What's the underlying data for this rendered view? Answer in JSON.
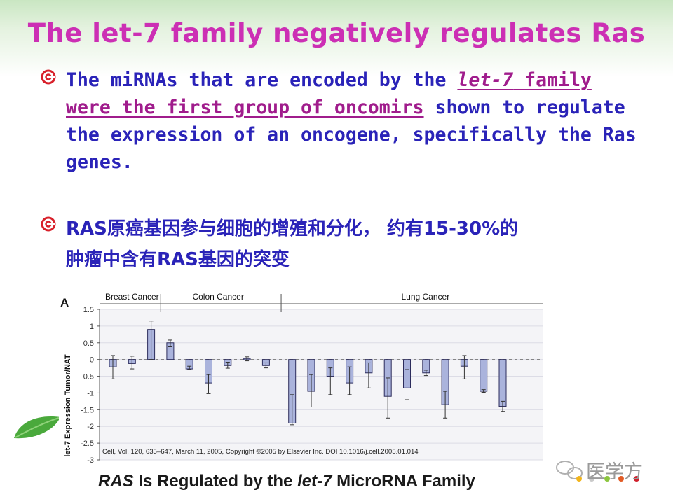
{
  "slide": {
    "title": "The let-7 family negatively regulates Ras",
    "bullet1": {
      "part1": "The miRNAs that are encoded by the ",
      "part2_italic": "let-7",
      "part3": " family",
      "part4": "were the first group of oncomirs",
      "part5": " shown to regulate the expression of an oncogene, specifically the Ras genes."
    },
    "bullet2": {
      "line1": "RAS原癌基因参与细胞的增殖和分化， 约有15-30%的",
      "line2": "肿瘤中含有RAS基因的突变"
    },
    "caption": {
      "italic": "RAS",
      "rest": " Is Regulated by the ",
      "italic2": "let-7",
      "rest2": " MicroRNA Family"
    },
    "watermark": "医学方"
  },
  "chart_data": {
    "type": "bar",
    "panel_label": "A",
    "ylabel": "let-7 Expression Tumor/NAT",
    "ylim": [
      -3,
      1.5
    ],
    "yticks": [
      "1.5",
      "1",
      "0.5",
      "0",
      "-0.5",
      "-1",
      "-1.5",
      "-2",
      "-2.5",
      "-3"
    ],
    "groups": [
      {
        "name": "Breast Cancer",
        "count": 3
      },
      {
        "name": "Colon Cancer",
        "count": 6
      },
      {
        "name": "Lung Cancer",
        "count": 12
      }
    ],
    "values": [
      -0.22,
      -0.12,
      0.9,
      0.5,
      -0.28,
      -0.7,
      -0.18,
      0.02,
      -0.18,
      -1.9,
      -0.95,
      -0.5,
      -0.7,
      -0.4,
      -1.1,
      -0.85,
      -0.4,
      -1.35,
      -0.2,
      -0.95,
      -1.4
    ],
    "err_low": [
      -0.58,
      -0.28,
      0.0,
      0.38,
      -0.3,
      -1.02,
      -0.26,
      -0.04,
      -0.25,
      -1.95,
      -1.42,
      -1.05,
      -1.05,
      -0.85,
      -1.75,
      -1.2,
      -0.48,
      -1.75,
      -0.58,
      -0.98,
      -1.55
    ],
    "err_high": [
      0.12,
      0.1,
      1.15,
      0.58,
      -0.2,
      -0.45,
      -0.08,
      0.08,
      -0.1,
      -1.05,
      -0.45,
      -0.25,
      -0.22,
      -0.1,
      -0.55,
      -0.3,
      -0.32,
      -0.95,
      0.12,
      -0.9,
      -1.25
    ],
    "citation": "Cell, Vol. 120, 635–647, March 11, 2005, Copyright ©2005 by Elsevier Inc.   DOI 10.1016/j.cell.2005.01.014",
    "bar_color": "#aab3dc",
    "bar_stroke": "#2c2c5c"
  }
}
